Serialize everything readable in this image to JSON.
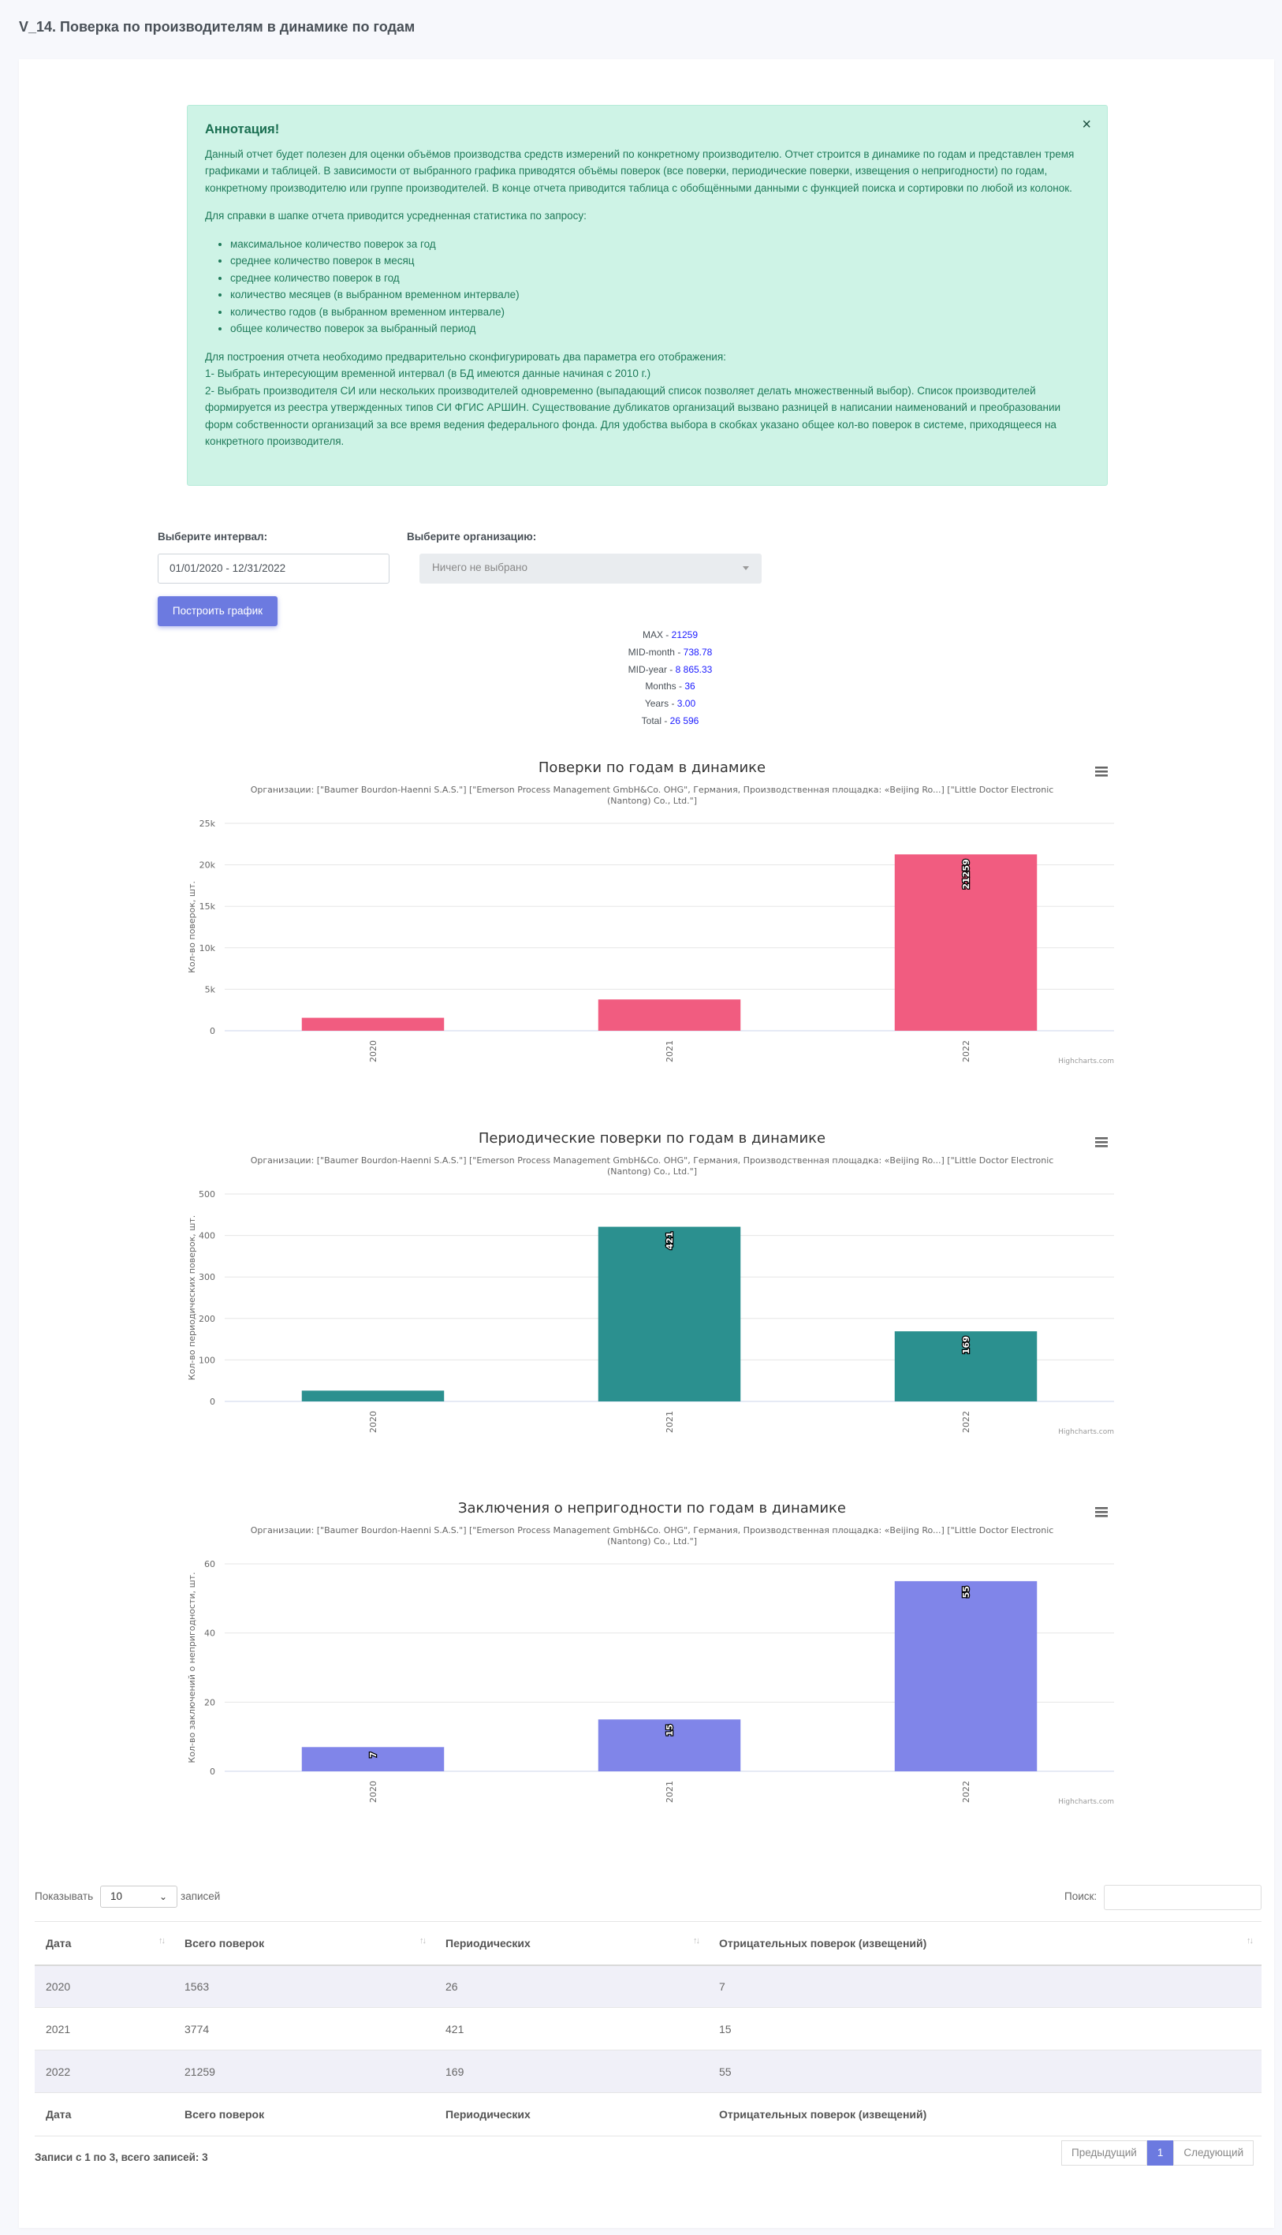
{
  "page_title": "V_14. Поверка по производителям в динамике по годам",
  "annotation": {
    "title": "Аннотация!",
    "close_symbol": "×",
    "p1": "Данный отчет будет полезен для оценки объёмов производства средств измерений по конкретному производителю. Отчет строится в динамике по годам и представлен тремя графиками и таблицей. В зависимости от выбранного графика приводятся объёмы поверок (все поверки, периодические поверки, извещения о непригодности) по годам, конкретному производителю или группе производителей. В конце отчета приводится таблица с обобщёнными данными с функцией поиска и сортировки по любой из колонок.",
    "p2": "Для справки в шапке отчета приводится усредненная статистика по запросу:",
    "list": [
      "максимальное количество поверок за год",
      "среднее количество поверок в месяц",
      "среднее количество поверок в год",
      "количество месяцев (в выбранном временном интервале)",
      "количество годов (в выбранном временном интервале)",
      "общее количество поверок за выбранный период"
    ],
    "p3_l1": "Для построения отчета необходимо предварительно сконфигурировать два параметра его отображения:",
    "p3_l2": "1- Выбрать интересующим временной интервал (в БД имеются данные начиная с 2010 г.)",
    "p3_l3": "2- Выбрать производителя СИ или нескольких производителей одновременно (выпадающий список позволяет делать множественный выбор). Список производителей формируется из реестра утвержденных типов СИ ФГИС АРШИН. Существование дубликатов организаций вызвано разницей в написании наименований и преобразовании форм собственности организаций за все время ведения федерального фонда. Для удобства выбора в скобках указано общее кол-во поверок в системе, приходящееся на конкретного производителя."
  },
  "form": {
    "interval_label": "Выберите интервал:",
    "interval_value": "01/01/2020 - 12/31/2022",
    "org_label": "Выберите организацию:",
    "org_placeholder": "Ничего не выбрано",
    "build_button": "Построить график"
  },
  "stats": [
    {
      "label": "MAX - ",
      "value": "21259"
    },
    {
      "label": "MID-month - ",
      "value": "738.78"
    },
    {
      "label": "MID-year - ",
      "value": "8 865.33"
    },
    {
      "label": "Months - ",
      "value": "36"
    },
    {
      "label": "Years - ",
      "value": "3.00"
    },
    {
      "label": "Total - ",
      "value": "26 596"
    }
  ],
  "chart_data": [
    {
      "type": "bar",
      "title": "Поверки по годам в динамике",
      "subtitle_l1": "Организации: [\"Baumer Bourdon-Haenni S.A.S.\"] [\"Emerson Process Management GmbH&Co. OHG\", Германия, Производственная площадка: «Beijing Ro...] [\"Little Doctor Electronic",
      "subtitle_l2": "(Nantong) Co., Ltd.\"]",
      "ylabel": "Кол-во поверок, шт.",
      "categories": [
        "2020",
        "2021",
        "2022"
      ],
      "values": [
        1563,
        3774,
        21259
      ],
      "data_labels": [
        null,
        null,
        "21259"
      ],
      "yticks": [
        "0",
        "5k",
        "10k",
        "15k",
        "20k",
        "25k"
      ],
      "ylim": [
        0,
        25000
      ],
      "color": "#f15c80",
      "credits": "Highcharts.com"
    },
    {
      "type": "bar",
      "title": "Периодические поверки по годам в динамике",
      "subtitle_l1": "Организации: [\"Baumer Bourdon-Haenni S.A.S.\"] [\"Emerson Process Management GmbH&Co. OHG\", Германия, Производственная площадка: «Beijing Ro...] [\"Little Doctor Electronic",
      "subtitle_l2": "(Nantong) Co., Ltd.\"]",
      "ylabel": "Кол-во периодических поверок, шт.",
      "categories": [
        "2020",
        "2021",
        "2022"
      ],
      "values": [
        26,
        421,
        169
      ],
      "data_labels": [
        null,
        "421",
        "169"
      ],
      "yticks": [
        "0",
        "100",
        "200",
        "300",
        "400",
        "500"
      ],
      "ylim": [
        0,
        500
      ],
      "color": "#2b908f",
      "credits": "Highcharts.com"
    },
    {
      "type": "bar",
      "title": "Заключения о непригодности по годам в динамике",
      "subtitle_l1": "Организации: [\"Baumer Bourdon-Haenni S.A.S.\"] [\"Emerson Process Management GmbH&Co. OHG\", Германия, Производственная площадка: «Beijing Ro...] [\"Little Doctor Electronic",
      "subtitle_l2": "(Nantong) Co., Ltd.\"]",
      "ylabel": "Кол-во заключений о непригодности, шт.",
      "categories": [
        "2020",
        "2021",
        "2022"
      ],
      "values": [
        7,
        15,
        55
      ],
      "data_labels": [
        "7",
        "15",
        "55"
      ],
      "yticks": [
        "0",
        "20",
        "40",
        "60"
      ],
      "ylim": [
        0,
        60
      ],
      "color": "#8085e9",
      "credits": "Highcharts.com"
    }
  ],
  "table": {
    "show_label": "Показывать",
    "length_value": "10",
    "entries_label": "записей",
    "search_label": "Поиск:",
    "columns": [
      "Дата",
      "Всего поверок",
      "Периодических",
      "Отрицательных поверок (извещений)"
    ],
    "rows": [
      [
        "2020",
        "1563",
        "26",
        "7"
      ],
      [
        "2021",
        "3774",
        "421",
        "15"
      ],
      [
        "2022",
        "21259",
        "169",
        "55"
      ]
    ],
    "info": "Записи с 1 по 3, всего записей: 3",
    "prev": "Предыдущий",
    "page": "1",
    "next": "Следующий"
  }
}
